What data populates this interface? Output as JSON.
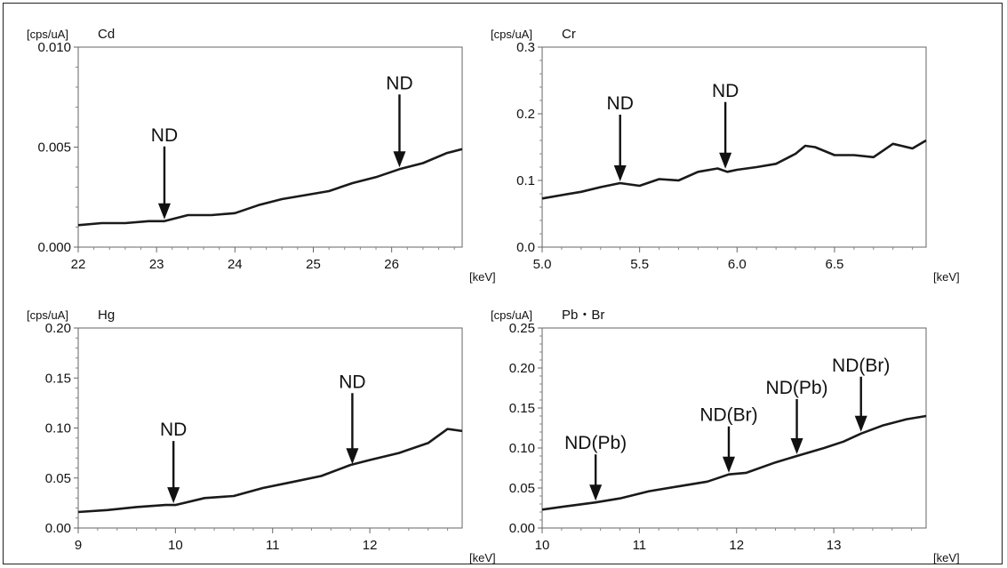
{
  "chart_data": [
    {
      "type": "line",
      "title": "Cd",
      "ylabel": "[cps/uA]",
      "xlabel": "[keV]",
      "xlim": [
        22,
        26.9
      ],
      "ylim": [
        0,
        0.01
      ],
      "xticks": [
        "22",
        "23",
        "24",
        "25",
        "26"
      ],
      "xtick_values": [
        22,
        23,
        24,
        25,
        26
      ],
      "yticks": [
        "0.000",
        "0.005",
        "0.010"
      ],
      "ytick_values": [
        0,
        0.005,
        0.01
      ],
      "series": [
        {
          "x": [
            22.0,
            22.3,
            22.6,
            22.9,
            23.1,
            23.4,
            23.7,
            24.0,
            24.3,
            24.6,
            24.9,
            25.2,
            25.5,
            25.8,
            26.1,
            26.4,
            26.7,
            26.9
          ],
          "y": [
            0.0011,
            0.0012,
            0.0012,
            0.0013,
            0.0013,
            0.0016,
            0.0016,
            0.0017,
            0.0021,
            0.0024,
            0.0026,
            0.0028,
            0.0032,
            0.0035,
            0.0039,
            0.0042,
            0.0047,
            0.0049
          ]
        }
      ],
      "annotations": [
        {
          "text": "ND",
          "x": 23.1,
          "y": 0.0013
        },
        {
          "text": "ND",
          "x": 26.1,
          "y": 0.0039
        }
      ]
    },
    {
      "type": "line",
      "title": "Cr",
      "ylabel": "[cps/uA]",
      "xlabel": "[keV]",
      "xlim": [
        5.0,
        6.97
      ],
      "ylim": [
        0,
        0.3
      ],
      "xticks": [
        "5.0",
        "5.5",
        "6.0",
        "6.5"
      ],
      "xtick_values": [
        5.0,
        5.5,
        6.0,
        6.5
      ],
      "yticks": [
        "0.0",
        "0.1",
        "0.2",
        "0.3"
      ],
      "ytick_values": [
        0,
        0.1,
        0.2,
        0.3
      ],
      "series": [
        {
          "x": [
            5.0,
            5.1,
            5.2,
            5.3,
            5.4,
            5.5,
            5.6,
            5.7,
            5.8,
            5.9,
            5.95,
            6.0,
            6.1,
            6.2,
            6.3,
            6.35,
            6.4,
            6.5,
            6.6,
            6.7,
            6.8,
            6.9,
            6.97
          ],
          "y": [
            0.073,
            0.078,
            0.083,
            0.09,
            0.096,
            0.092,
            0.102,
            0.1,
            0.113,
            0.118,
            0.113,
            0.116,
            0.12,
            0.125,
            0.14,
            0.152,
            0.15,
            0.138,
            0.138,
            0.135,
            0.155,
            0.148,
            0.16
          ]
        }
      ],
      "annotations": [
        {
          "text": "ND",
          "x": 5.4,
          "y": 0.096
        },
        {
          "text": "ND",
          "x": 5.94,
          "y": 0.115
        }
      ]
    },
    {
      "type": "line",
      "title": "Hg",
      "ylabel": "[cps/uA]",
      "xlabel": "[keV]",
      "xlim": [
        9,
        12.95
      ],
      "ylim": [
        0,
        0.2
      ],
      "xticks": [
        "9",
        "10",
        "11",
        "12"
      ],
      "xtick_values": [
        9,
        10,
        11,
        12
      ],
      "yticks": [
        "0.00",
        "0.05",
        "0.10",
        "0.15",
        "0.20"
      ],
      "ytick_values": [
        0,
        0.05,
        0.1,
        0.15,
        0.2
      ],
      "series": [
        {
          "x": [
            9.0,
            9.3,
            9.6,
            9.9,
            10.0,
            10.3,
            10.6,
            10.9,
            11.2,
            11.5,
            11.8,
            12.0,
            12.3,
            12.6,
            12.8,
            12.95
          ],
          "y": [
            0.016,
            0.018,
            0.021,
            0.023,
            0.023,
            0.03,
            0.032,
            0.04,
            0.046,
            0.052,
            0.063,
            0.068,
            0.075,
            0.085,
            0.099,
            0.097
          ]
        }
      ],
      "annotations": [
        {
          "text": "ND",
          "x": 9.98,
          "y": 0.023
        },
        {
          "text": "ND",
          "x": 11.82,
          "y": 0.062
        }
      ]
    },
    {
      "type": "line",
      "title": "Pb・Br",
      "ylabel": "[cps/uA]",
      "xlabel": "[keV]",
      "xlim": [
        10,
        13.95
      ],
      "ylim": [
        0,
        0.25
      ],
      "xticks": [
        "10",
        "11",
        "12",
        "13"
      ],
      "xtick_values": [
        10,
        11,
        12,
        13
      ],
      "yticks": [
        "0.00",
        "0.05",
        "0.10",
        "0.15",
        "0.20",
        "0.25"
      ],
      "ytick_values": [
        0,
        0.05,
        0.1,
        0.15,
        0.2,
        0.25
      ],
      "series": [
        {
          "x": [
            10.0,
            10.3,
            10.55,
            10.8,
            11.1,
            11.4,
            11.7,
            11.92,
            12.1,
            12.4,
            12.62,
            12.9,
            13.1,
            13.28,
            13.5,
            13.75,
            13.95
          ],
          "y": [
            0.023,
            0.028,
            0.032,
            0.037,
            0.046,
            0.052,
            0.058,
            0.067,
            0.069,
            0.082,
            0.09,
            0.1,
            0.108,
            0.118,
            0.128,
            0.136,
            0.14
          ]
        }
      ],
      "annotations": [
        {
          "text": "ND(Pb)",
          "x": 10.55,
          "y": 0.032
        },
        {
          "text": "ND(Br)",
          "x": 11.92,
          "y": 0.067
        },
        {
          "text": "ND(Pb)",
          "x": 12.62,
          "y": 0.09
        },
        {
          "text": "ND(Br)",
          "x": 13.28,
          "y": 0.118
        }
      ]
    }
  ]
}
